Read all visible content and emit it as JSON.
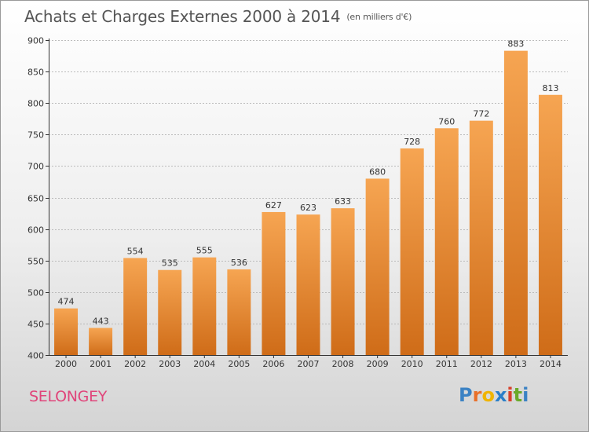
{
  "title": {
    "main": "Achats et Charges Externes 2000 à 2014",
    "unit": "(en milliers d'€)"
  },
  "commune": "SELONGEY",
  "brand": {
    "text": "Proxiti",
    "letters": [
      "P",
      "r",
      "o",
      "x",
      "i",
      "t",
      "i"
    ],
    "letter_colors": [
      "#3b82c4",
      "#e8702a",
      "#f0b400",
      "#2a7fc9",
      "#d8402b",
      "#6aaa2a",
      "#3b82c4"
    ]
  },
  "colors": {
    "bar_light": "#f6a552",
    "bar_dark": "#cf6c18",
    "grid": "#bbbbbb",
    "commune": "#e0457a"
  },
  "chart_data": {
    "type": "bar",
    "categories": [
      "2000",
      "2001",
      "2002",
      "2003",
      "2004",
      "2005",
      "2006",
      "2007",
      "2008",
      "2009",
      "2010",
      "2011",
      "2012",
      "2013",
      "2014"
    ],
    "values": [
      474,
      443,
      554,
      535,
      555,
      536,
      627,
      623,
      633,
      680,
      728,
      760,
      772,
      883,
      813
    ],
    "title": "Achats et Charges Externes 2000 à 2014",
    "subtitle": "(en milliers d'€)",
    "xlabel": "",
    "ylabel": "",
    "ylim": [
      400,
      900
    ],
    "yticks": [
      400,
      450,
      500,
      550,
      600,
      650,
      700,
      750,
      800,
      850,
      900
    ],
    "grid": true,
    "data_labels": true
  }
}
